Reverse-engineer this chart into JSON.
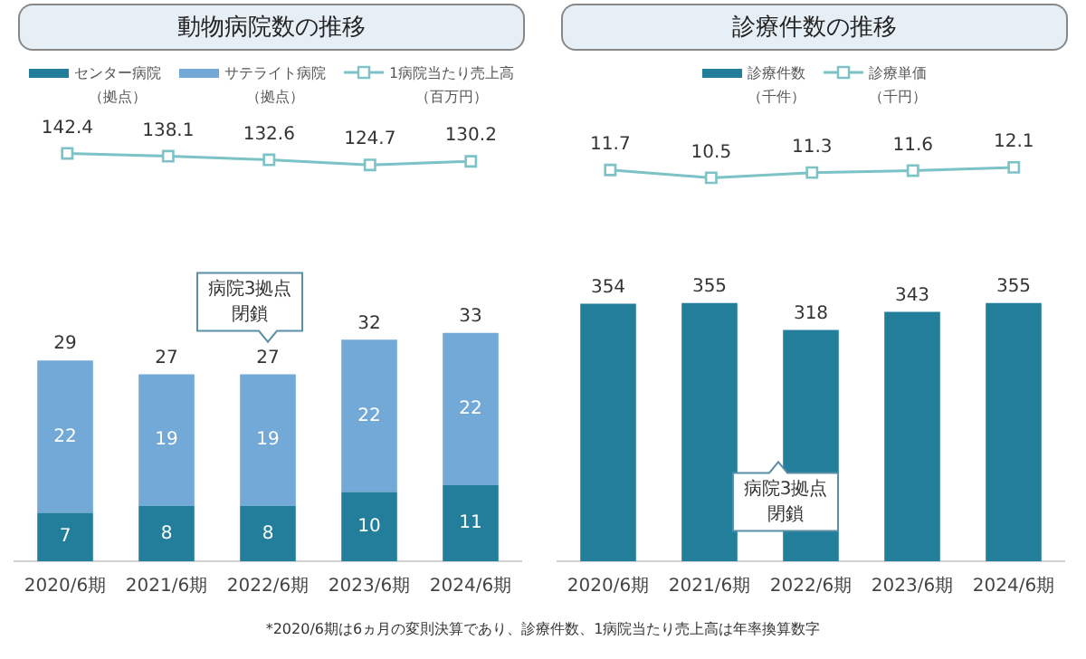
{
  "chart_data": [
    {
      "type": "line",
      "title": "動物病院数の推移",
      "categories": [
        "2020/6期",
        "2021/6期",
        "2022/6期",
        "2023/6期",
        "2024/6期"
      ],
      "legend": "top",
      "tick_labels": false,
      "grid": false,
      "data_labels": true,
      "marker": "square",
      "series": [
        {
          "name": "1病院当たり売上高（百万円）",
          "color": "#7cc3c7",
          "values": [
            142.4,
            138.1,
            132.6,
            124.7,
            130.2
          ]
        }
      ]
    },
    {
      "type": "bar",
      "categories": [
        "2020/6期",
        "2021/6期",
        "2022/6期",
        "2023/6期",
        "2024/6期"
      ],
      "stacked": true,
      "legend": "top",
      "tick_labels": "x",
      "grid": false,
      "data_labels": true,
      "series": [
        {
          "name": "センター病院（拠点）",
          "color": "#237e9b",
          "values": [
            7,
            8,
            8,
            10,
            11
          ]
        },
        {
          "name": "サテライト病院（拠点）",
          "color": "#72a9d6",
          "values": [
            22,
            19,
            19,
            22,
            22
          ]
        }
      ],
      "totals": [
        "29",
        "27",
        "27",
        "32",
        "33"
      ],
      "annotations": [
        "病院3拠点閉鎖"
      ]
    },
    {
      "type": "line",
      "title": "診療件数の推移",
      "categories": [
        "2020/6期",
        "2021/6期",
        "2022/6期",
        "2023/6期",
        "2024/6期"
      ],
      "legend": "top",
      "tick_labels": false,
      "grid": false,
      "data_labels": true,
      "marker": "square",
      "series": [
        {
          "name": "診療単価（千円）",
          "color": "#7cc3c7",
          "values": [
            11.7,
            10.5,
            11.3,
            11.6,
            12.1
          ]
        }
      ]
    },
    {
      "type": "bar",
      "categories": [
        "2020/6期",
        "2021/6期",
        "2022/6期",
        "2023/6期",
        "2024/6期"
      ],
      "legend": "top",
      "tick_labels": "x",
      "grid": false,
      "data_labels": true,
      "series": [
        {
          "name": "診療件数（千件）",
          "color": "#237e9b",
          "values": [
            354,
            355,
            318,
            343,
            355
          ]
        }
      ],
      "annotations": [
        "病院3拠点閉鎖",
        "*2020/6期は6ヵ月の変則決算であり、診療件数、1病院当たり売上高は年率換算数字"
      ]
    }
  ]
}
